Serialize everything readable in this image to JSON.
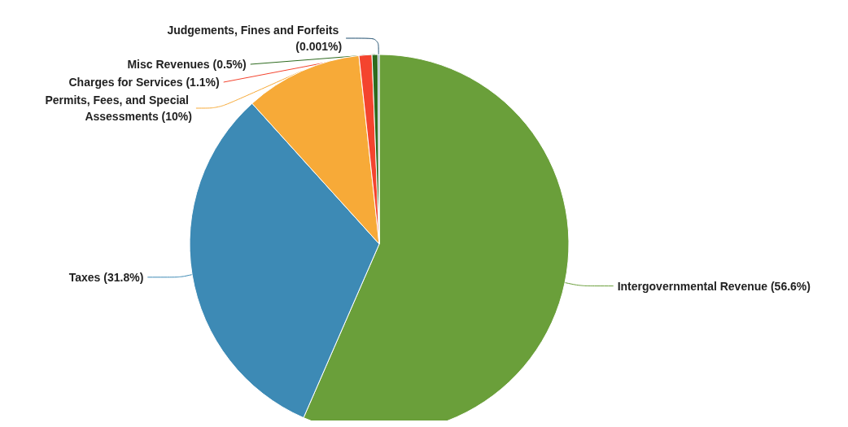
{
  "chart_data": {
    "type": "pie",
    "categories": [
      "Intergovernmental Revenue (56.6%)",
      "Taxes (31.8%)",
      "Permits, Fees, and Special Assessments (10%)",
      "Charges for Services (1.1%)",
      "Misc Revenues (0.5%)",
      "Judgements, Fines and Forfeits (0.001%)"
    ],
    "values": [
      56.6,
      31.8,
      10,
      1.1,
      0.5,
      0.001
    ],
    "colors": [
      "#6a9f3a",
      "#3d8ab5",
      "#f7aa38",
      "#f4442e",
      "#2e6b1f",
      "#1f4e6e"
    ],
    "legend": false
  }
}
